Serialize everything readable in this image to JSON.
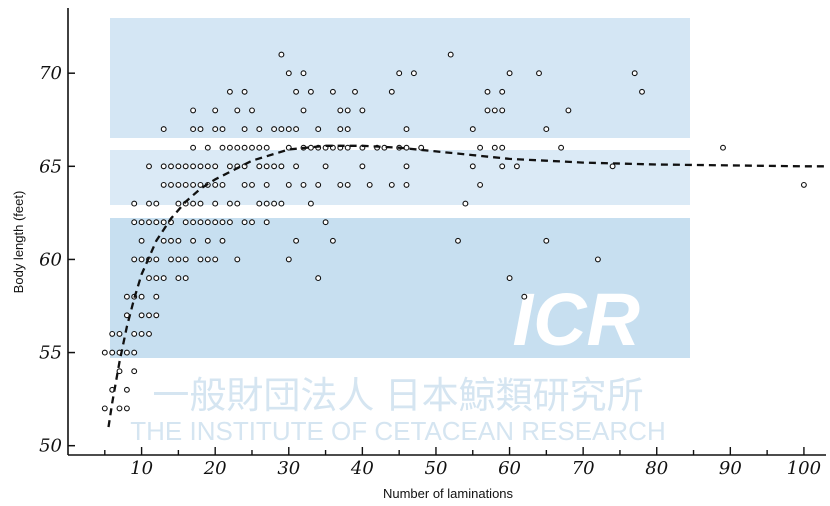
{
  "watermark": {
    "logo_text": "ICR",
    "japanese_name": "一般財団法人 日本鯨類研究所",
    "english_name": "THE INSTITUTE OF CETACEAN RESEARCH",
    "color": "#bcd7ec"
  },
  "chart_data": {
    "type": "scatter",
    "title": "",
    "xlabel": "Number of laminations",
    "ylabel": "Body length (feet)",
    "xlim": [
      0,
      103
    ],
    "ylim": [
      49.5,
      73.5
    ],
    "x_ticks": [
      10,
      20,
      30,
      40,
      50,
      60,
      70,
      80,
      90,
      100
    ],
    "y_ticks": [
      50,
      55,
      60,
      65,
      70
    ],
    "grid": false,
    "marker": "open-circle",
    "ink_color": "#111111",
    "points": [
      [
        5,
        52
      ],
      [
        5,
        55
      ],
      [
        6,
        53
      ],
      [
        6,
        55
      ],
      [
        6,
        56
      ],
      [
        7,
        52
      ],
      [
        7,
        54
      ],
      [
        7,
        55
      ],
      [
        7,
        56
      ],
      [
        8,
        52
      ],
      [
        8,
        53
      ],
      [
        8,
        55
      ],
      [
        8,
        57
      ],
      [
        8,
        58
      ],
      [
        9,
        54
      ],
      [
        9,
        55
      ],
      [
        9,
        56
      ],
      [
        9,
        58
      ],
      [
        9,
        60
      ],
      [
        9,
        62
      ],
      [
        9,
        63
      ],
      [
        10,
        56
      ],
      [
        10,
        57
      ],
      [
        10,
        58
      ],
      [
        10,
        60
      ],
      [
        10,
        61
      ],
      [
        10,
        62
      ],
      [
        11,
        56
      ],
      [
        11,
        57
      ],
      [
        11,
        59
      ],
      [
        11,
        60
      ],
      [
        11,
        62
      ],
      [
        11,
        63
      ],
      [
        11,
        65
      ],
      [
        12,
        57
      ],
      [
        12,
        58
      ],
      [
        12,
        59
      ],
      [
        12,
        60
      ],
      [
        12,
        62
      ],
      [
        12,
        63
      ],
      [
        13,
        59
      ],
      [
        13,
        61
      ],
      [
        13,
        62
      ],
      [
        13,
        64
      ],
      [
        13,
        65
      ],
      [
        13,
        67
      ],
      [
        14,
        60
      ],
      [
        14,
        61
      ],
      [
        14,
        62
      ],
      [
        14,
        64
      ],
      [
        14,
        65
      ],
      [
        15,
        59
      ],
      [
        15,
        60
      ],
      [
        15,
        61
      ],
      [
        15,
        63
      ],
      [
        15,
        64
      ],
      [
        15,
        65
      ],
      [
        16,
        59
      ],
      [
        16,
        60
      ],
      [
        16,
        62
      ],
      [
        16,
        63
      ],
      [
        16,
        64
      ],
      [
        16,
        65
      ],
      [
        17,
        61
      ],
      [
        17,
        62
      ],
      [
        17,
        63
      ],
      [
        17,
        64
      ],
      [
        17,
        65
      ],
      [
        17,
        66
      ],
      [
        17,
        67
      ],
      [
        17,
        68
      ],
      [
        18,
        60
      ],
      [
        18,
        62
      ],
      [
        18,
        63
      ],
      [
        18,
        64
      ],
      [
        18,
        65
      ],
      [
        18,
        67
      ],
      [
        19,
        60
      ],
      [
        19,
        61
      ],
      [
        19,
        62
      ],
      [
        19,
        64
      ],
      [
        19,
        65
      ],
      [
        19,
        66
      ],
      [
        20,
        60
      ],
      [
        20,
        62
      ],
      [
        20,
        63
      ],
      [
        20,
        64
      ],
      [
        20,
        65
      ],
      [
        20,
        67
      ],
      [
        20,
        68
      ],
      [
        21,
        61
      ],
      [
        21,
        62
      ],
      [
        21,
        64
      ],
      [
        21,
        66
      ],
      [
        21,
        67
      ],
      [
        22,
        62
      ],
      [
        22,
        63
      ],
      [
        22,
        65
      ],
      [
        22,
        66
      ],
      [
        22,
        69
      ],
      [
        23,
        60
      ],
      [
        23,
        63
      ],
      [
        23,
        65
      ],
      [
        23,
        66
      ],
      [
        23,
        68
      ],
      [
        24,
        62
      ],
      [
        24,
        64
      ],
      [
        24,
        65
      ],
      [
        24,
        66
      ],
      [
        24,
        67
      ],
      [
        24,
        69
      ],
      [
        25,
        62
      ],
      [
        25,
        64
      ],
      [
        25,
        66
      ],
      [
        25,
        68
      ],
      [
        26,
        63
      ],
      [
        26,
        65
      ],
      [
        26,
        66
      ],
      [
        26,
        67
      ],
      [
        27,
        62
      ],
      [
        27,
        63
      ],
      [
        27,
        64
      ],
      [
        27,
        65
      ],
      [
        27,
        66
      ],
      [
        28,
        63
      ],
      [
        28,
        65
      ],
      [
        28,
        67
      ],
      [
        29,
        63
      ],
      [
        29,
        65
      ],
      [
        29,
        67
      ],
      [
        29,
        71
      ],
      [
        30,
        60
      ],
      [
        30,
        64
      ],
      [
        30,
        66
      ],
      [
        30,
        67
      ],
      [
        30,
        70
      ],
      [
        31,
        61
      ],
      [
        31,
        65
      ],
      [
        31,
        67
      ],
      [
        31,
        69
      ],
      [
        32,
        64
      ],
      [
        32,
        66
      ],
      [
        32,
        68
      ],
      [
        32,
        70
      ],
      [
        33,
        63
      ],
      [
        33,
        66
      ],
      [
        33,
        69
      ],
      [
        34,
        59
      ],
      [
        34,
        64
      ],
      [
        34,
        66
      ],
      [
        34,
        67
      ],
      [
        35,
        62
      ],
      [
        35,
        65
      ],
      [
        35,
        66
      ],
      [
        36,
        61
      ],
      [
        36,
        66
      ],
      [
        36,
        69
      ],
      [
        37,
        64
      ],
      [
        37,
        66
      ],
      [
        37,
        67
      ],
      [
        37,
        68
      ],
      [
        38,
        64
      ],
      [
        38,
        66
      ],
      [
        38,
        67
      ],
      [
        38,
        68
      ],
      [
        39,
        69
      ],
      [
        40,
        65
      ],
      [
        40,
        66
      ],
      [
        40,
        68
      ],
      [
        41,
        64
      ],
      [
        42,
        66
      ],
      [
        43,
        66
      ],
      [
        44,
        64
      ],
      [
        44,
        69
      ],
      [
        45,
        66
      ],
      [
        45,
        70
      ],
      [
        46,
        64
      ],
      [
        46,
        65
      ],
      [
        46,
        66
      ],
      [
        46,
        67
      ],
      [
        47,
        70
      ],
      [
        48,
        66
      ],
      [
        52,
        71
      ],
      [
        53,
        61
      ],
      [
        54,
        63
      ],
      [
        55,
        65
      ],
      [
        55,
        67
      ],
      [
        56,
        64
      ],
      [
        56,
        66
      ],
      [
        57,
        68
      ],
      [
        57,
        69
      ],
      [
        58,
        66
      ],
      [
        58,
        68
      ],
      [
        59,
        65
      ],
      [
        59,
        66
      ],
      [
        59,
        68
      ],
      [
        59,
        69
      ],
      [
        60,
        59
      ],
      [
        60,
        70
      ],
      [
        61,
        65
      ],
      [
        62,
        58
      ],
      [
        64,
        70
      ],
      [
        65,
        61
      ],
      [
        65,
        67
      ],
      [
        67,
        66
      ],
      [
        68,
        68
      ],
      [
        72,
        60
      ],
      [
        74,
        65
      ],
      [
        77,
        70
      ],
      [
        78,
        69
      ],
      [
        89,
        66
      ],
      [
        100,
        64
      ]
    ],
    "series": [
      {
        "type": "line",
        "style": "dashed",
        "x": [
          5.5,
          6,
          7,
          8,
          9,
          10,
          12,
          14,
          16,
          18,
          20,
          25,
          30,
          35,
          40,
          45,
          50,
          55,
          60,
          65,
          70,
          80,
          90,
          100,
          103
        ],
        "y": [
          51.0,
          52.3,
          54.5,
          56.4,
          57.9,
          59.2,
          61.0,
          62.2,
          63.1,
          63.8,
          64.3,
          65.3,
          65.9,
          66.1,
          66.1,
          66.0,
          65.8,
          65.6,
          65.4,
          65.3,
          65.2,
          65.1,
          65.05,
          65.0,
          65.0
        ]
      }
    ]
  }
}
